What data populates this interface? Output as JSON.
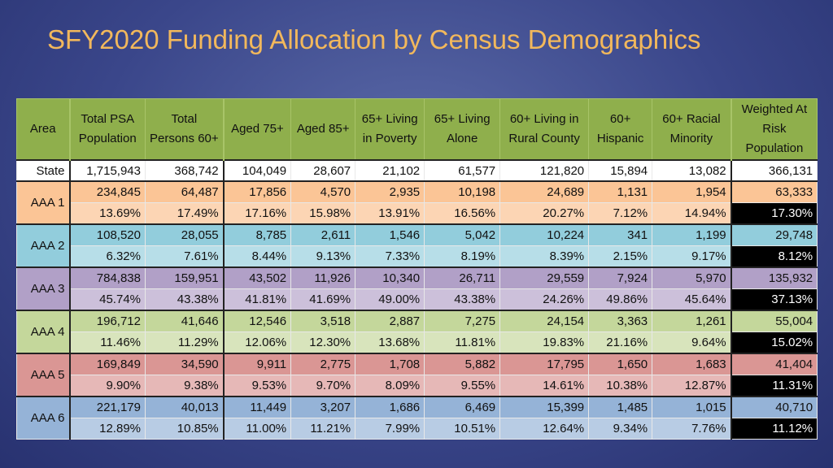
{
  "title": "SFY2020 Funding Allocation by Census Demographics",
  "table": {
    "columns": [
      [
        "Area"
      ],
      [
        "Total PSA",
        "Population"
      ],
      [
        "Total",
        "Persons 60+"
      ],
      [
        "Aged 75+"
      ],
      [
        "Aged 85+"
      ],
      [
        "65+ Living",
        "in Poverty"
      ],
      [
        "65+ Living",
        "Alone"
      ],
      [
        "60+ Living in",
        "Rural County"
      ],
      [
        "60+",
        "Hispanic"
      ],
      [
        "60+ Racial",
        "Minority"
      ],
      [
        "Weighted At",
        "Risk",
        "Population"
      ]
    ],
    "state": {
      "label": "State",
      "values": [
        "1,715,943",
        "368,742",
        "104,049",
        "28,607",
        "21,102",
        "61,577",
        "121,820",
        "15,894",
        "13,082",
        "366,131"
      ]
    },
    "areas": [
      {
        "label": "AAA 1",
        "counts": [
          "234,845",
          "64,487",
          "17,856",
          "4,570",
          "2,935",
          "10,198",
          "24,689",
          "1,131",
          "1,954",
          "63,333"
        ],
        "percents": [
          "13.69%",
          "17.49%",
          "17.16%",
          "15.98%",
          "13.91%",
          "16.56%",
          "20.27%",
          "7.12%",
          "14.94%",
          "17.30%"
        ]
      },
      {
        "label": "AAA 2",
        "counts": [
          "108,520",
          "28,055",
          "8,785",
          "2,611",
          "1,546",
          "5,042",
          "10,224",
          "341",
          "1,199",
          "29,748"
        ],
        "percents": [
          "6.32%",
          "7.61%",
          "8.44%",
          "9.13%",
          "7.33%",
          "8.19%",
          "8.39%",
          "2.15%",
          "9.17%",
          "8.12%"
        ]
      },
      {
        "label": "AAA 3",
        "counts": [
          "784,838",
          "159,951",
          "43,502",
          "11,926",
          "10,340",
          "26,711",
          "29,559",
          "7,924",
          "5,970",
          "135,932"
        ],
        "percents": [
          "45.74%",
          "43.38%",
          "41.81%",
          "41.69%",
          "49.00%",
          "43.38%",
          "24.26%",
          "49.86%",
          "45.64%",
          "37.13%"
        ]
      },
      {
        "label": "AAA 4",
        "counts": [
          "196,712",
          "41,646",
          "12,546",
          "3,518",
          "2,887",
          "7,275",
          "24,154",
          "3,363",
          "1,261",
          "55,004"
        ],
        "percents": [
          "11.46%",
          "11.29%",
          "12.06%",
          "12.30%",
          "13.68%",
          "11.81%",
          "19.83%",
          "21.16%",
          "9.64%",
          "15.02%"
        ]
      },
      {
        "label": "AAA 5",
        "counts": [
          "169,849",
          "34,590",
          "9,911",
          "2,775",
          "1,708",
          "5,882",
          "17,795",
          "1,650",
          "1,683",
          "41,404"
        ],
        "percents": [
          "9.90%",
          "9.38%",
          "9.53%",
          "9.70%",
          "8.09%",
          "9.55%",
          "14.61%",
          "10.38%",
          "12.87%",
          "11.31%"
        ]
      },
      {
        "label": "AAA 6",
        "counts": [
          "221,179",
          "40,013",
          "11,449",
          "3,207",
          "1,686",
          "6,469",
          "15,399",
          "1,485",
          "1,015",
          "40,710"
        ],
        "percents": [
          "12.89%",
          "10.85%",
          "11.00%",
          "11.21%",
          "7.99%",
          "10.51%",
          "12.64%",
          "9.34%",
          "7.76%",
          "11.12%"
        ]
      }
    ]
  }
}
